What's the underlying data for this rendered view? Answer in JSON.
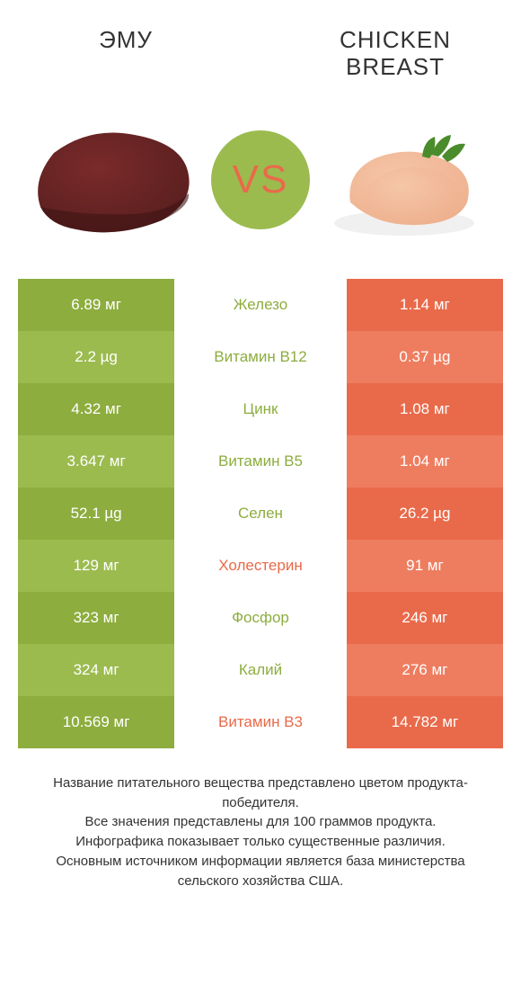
{
  "colors": {
    "left": "#8dad3e",
    "left_alt": "#9bbb4f",
    "right": "#e96a4a",
    "right_alt": "#ee7d5f",
    "mid_green_text": "#8dad3e",
    "mid_orange_text": "#e96a4a",
    "vs_bg": "#9bbb4f",
    "vs_text": "#e96a4a",
    "meat_dark": "#5a1f1f",
    "meat_mid": "#7a2a2a",
    "chicken_light": "#f5c6a8",
    "chicken_mid": "#eeb08d",
    "herb": "#4a8c2b"
  },
  "header": {
    "left": "ЭМУ",
    "right": "CHICKEN BREAST",
    "vs": "VS"
  },
  "rows": [
    {
      "left": "6.89 мг",
      "mid": "Железо",
      "right": "1.14 мг",
      "winner": "left"
    },
    {
      "left": "2.2 µg",
      "mid": "Витамин B12",
      "right": "0.37 µg",
      "winner": "left"
    },
    {
      "left": "4.32 мг",
      "mid": "Цинк",
      "right": "1.08 мг",
      "winner": "left"
    },
    {
      "left": "3.647 мг",
      "mid": "Витамин B5",
      "right": "1.04 мг",
      "winner": "left"
    },
    {
      "left": "52.1 µg",
      "mid": "Селен",
      "right": "26.2 µg",
      "winner": "left"
    },
    {
      "left": "129 мг",
      "mid": "Холестерин",
      "right": "91 мг",
      "winner": "right"
    },
    {
      "left": "323 мг",
      "mid": "Фосфор",
      "right": "246 мг",
      "winner": "left"
    },
    {
      "left": "324 мг",
      "mid": "Калий",
      "right": "276 мг",
      "winner": "left"
    },
    {
      "left": "10.569 мг",
      "mid": "Витамин B3",
      "right": "14.782 мг",
      "winner": "right"
    }
  ],
  "footnote": {
    "l1": "Название питательного вещества представлено цветом продукта-победителя.",
    "l2": "Все значения представлены для 100 граммов продукта.",
    "l3": "Инфографика показывает только существенные различия.",
    "l4": "Основным источником информации является база министерства сельского хозяйства США."
  }
}
